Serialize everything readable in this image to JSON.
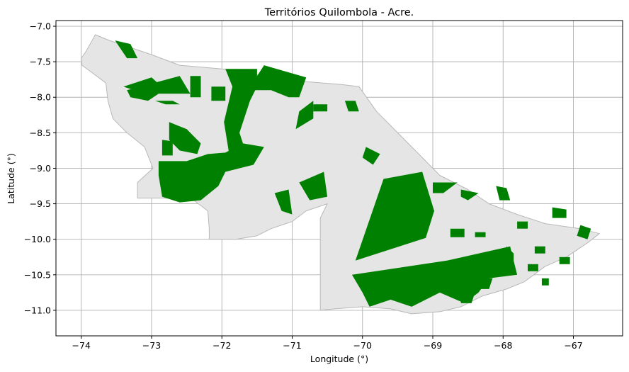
{
  "chart_data": {
    "type": "map",
    "title": "Territórios Quilombola - Acre.",
    "xlabel": "Longitude (°)",
    "ylabel": "Latitude (°)",
    "xlim": [
      -74.36,
      -66.3
    ],
    "ylim": [
      -11.36,
      -6.92
    ],
    "x_ticks": [
      -74,
      -73,
      -72,
      -71,
      -70,
      -69,
      -68,
      -67
    ],
    "x_tick_labels": [
      "−74",
      "−73",
      "−72",
      "−71",
      "−70",
      "−69",
      "−68",
      "−67"
    ],
    "y_ticks": [
      -7.0,
      -7.5,
      -8.0,
      -8.5,
      -9.0,
      -9.5,
      -10.0,
      -10.5,
      -11.0
    ],
    "y_tick_labels": [
      "−7.0",
      "−7.5",
      "−8.0",
      "−8.5",
      "−9.0",
      "−9.5",
      "−10.0",
      "−10.5",
      "−11.0"
    ],
    "grid": true,
    "colors": {
      "state_fill": "#e5e5e5",
      "state_edge": "#b8b8b8",
      "territory_fill": "#008000",
      "grid": "#b0b0b0",
      "axes": "#000000"
    },
    "state_outline": [
      [
        -73.8,
        -7.12
      ],
      [
        -73.6,
        -7.2
      ],
      [
        -73.3,
        -7.3
      ],
      [
        -73.0,
        -7.4
      ],
      [
        -72.6,
        -7.55
      ],
      [
        -72.0,
        -7.6
      ],
      [
        -71.4,
        -7.7
      ],
      [
        -70.8,
        -7.78
      ],
      [
        -70.3,
        -7.82
      ],
      [
        -70.05,
        -7.85
      ],
      [
        -69.8,
        -8.2
      ],
      [
        -69.5,
        -8.5
      ],
      [
        -69.2,
        -8.8
      ],
      [
        -68.9,
        -9.1
      ],
      [
        -68.5,
        -9.3
      ],
      [
        -68.2,
        -9.5
      ],
      [
        -67.8,
        -9.65
      ],
      [
        -67.4,
        -9.78
      ],
      [
        -66.9,
        -9.85
      ],
      [
        -66.63,
        -9.92
      ],
      [
        -66.8,
        -10.05
      ],
      [
        -67.1,
        -10.25
      ],
      [
        -67.4,
        -10.38
      ],
      [
        -67.7,
        -10.6
      ],
      [
        -67.95,
        -10.7
      ],
      [
        -68.3,
        -10.8
      ],
      [
        -68.6,
        -10.95
      ],
      [
        -68.9,
        -11.02
      ],
      [
        -69.3,
        -11.05
      ],
      [
        -69.6,
        -10.98
      ],
      [
        -70.0,
        -10.95
      ],
      [
        -70.4,
        -10.98
      ],
      [
        -70.6,
        -11.0
      ],
      [
        -70.6,
        -9.7
      ],
      [
        -70.5,
        -9.5
      ],
      [
        -70.8,
        -9.6
      ],
      [
        -71.0,
        -9.75
      ],
      [
        -71.3,
        -9.85
      ],
      [
        -71.5,
        -9.95
      ],
      [
        -71.8,
        -10.0
      ],
      [
        -72.18,
        -10.0
      ],
      [
        -72.18,
        -9.85
      ],
      [
        -72.2,
        -9.6
      ],
      [
        -72.4,
        -9.45
      ],
      [
        -72.8,
        -9.42
      ],
      [
        -73.2,
        -9.42
      ],
      [
        -73.2,
        -9.2
      ],
      [
        -72.98,
        -9.0
      ],
      [
        -73.1,
        -8.7
      ],
      [
        -73.35,
        -8.5
      ],
      [
        -73.55,
        -8.3
      ],
      [
        -73.62,
        -8.05
      ],
      [
        -73.65,
        -7.8
      ],
      [
        -73.85,
        -7.65
      ],
      [
        -73.99,
        -7.55
      ],
      [
        -74.0,
        -7.45
      ],
      [
        -73.93,
        -7.35
      ],
      [
        -73.8,
        -7.12
      ]
    ],
    "territories": [
      [
        [
          -73.52,
          -7.2
        ],
        [
          -73.3,
          -7.25
        ],
        [
          -73.2,
          -7.45
        ],
        [
          -73.35,
          -7.45
        ]
      ],
      [
        [
          -73.35,
          -7.9
        ],
        [
          -72.6,
          -7.7
        ],
        [
          -72.45,
          -7.95
        ],
        [
          -72.9,
          -7.95
        ],
        [
          -73.05,
          -8.05
        ],
        [
          -73.3,
          -8.0
        ]
      ],
      [
        [
          -73.4,
          -7.85
        ],
        [
          -73.0,
          -7.72
        ],
        [
          -72.8,
          -7.9
        ],
        [
          -73.1,
          -7.95
        ]
      ],
      [
        [
          -72.95,
          -8.05
        ],
        [
          -72.7,
          -8.05
        ],
        [
          -72.6,
          -8.1
        ],
        [
          -72.8,
          -8.1
        ]
      ],
      [
        [
          -72.75,
          -8.35
        ],
        [
          -72.5,
          -8.45
        ],
        [
          -72.3,
          -8.65
        ],
        [
          -72.35,
          -8.8
        ],
        [
          -72.6,
          -8.75
        ],
        [
          -72.75,
          -8.6
        ]
      ],
      [
        [
          -72.85,
          -8.6
        ],
        [
          -72.7,
          -8.62
        ],
        [
          -72.7,
          -8.82
        ],
        [
          -72.85,
          -8.82
        ]
      ],
      [
        [
          -72.9,
          -8.9
        ],
        [
          -72.5,
          -8.9
        ],
        [
          -72.2,
          -8.8
        ],
        [
          -71.95,
          -8.78
        ],
        [
          -71.7,
          -8.65
        ],
        [
          -71.4,
          -8.7
        ],
        [
          -71.55,
          -8.95
        ],
        [
          -71.95,
          -9.05
        ],
        [
          -72.05,
          -9.25
        ],
        [
          -72.3,
          -9.45
        ],
        [
          -72.6,
          -9.48
        ],
        [
          -72.85,
          -9.4
        ],
        [
          -72.9,
          -9.1
        ]
      ],
      [
        [
          -71.85,
          -7.85
        ],
        [
          -71.95,
          -7.6
        ],
        [
          -71.5,
          -7.6
        ],
        [
          -71.5,
          -7.85
        ],
        [
          -71.6,
          -8.05
        ],
        [
          -71.75,
          -8.5
        ],
        [
          -71.7,
          -8.65
        ],
        [
          -71.9,
          -8.78
        ],
        [
          -71.97,
          -8.35
        ]
      ],
      [
        [
          -71.4,
          -7.55
        ],
        [
          -70.8,
          -7.72
        ],
        [
          -70.9,
          -8.0
        ],
        [
          -71.05,
          -8.0
        ],
        [
          -71.3,
          -7.9
        ],
        [
          -71.6,
          -7.9
        ],
        [
          -71.5,
          -7.7
        ]
      ],
      [
        [
          -72.15,
          -7.85
        ],
        [
          -71.95,
          -7.85
        ],
        [
          -71.95,
          -8.05
        ],
        [
          -72.15,
          -8.05
        ]
      ],
      [
        [
          -72.45,
          -7.7
        ],
        [
          -72.3,
          -7.7
        ],
        [
          -72.3,
          -8.0
        ],
        [
          -72.45,
          -8.0
        ]
      ],
      [
        [
          -70.9,
          -8.2
        ],
        [
          -70.7,
          -8.05
        ],
        [
          -70.7,
          -8.3
        ],
        [
          -70.95,
          -8.45
        ]
      ],
      [
        [
          -70.7,
          -8.1
        ],
        [
          -70.5,
          -8.1
        ],
        [
          -70.5,
          -8.2
        ],
        [
          -70.7,
          -8.2
        ]
      ],
      [
        [
          -70.25,
          -8.05
        ],
        [
          -70.1,
          -8.05
        ],
        [
          -70.05,
          -8.2
        ],
        [
          -70.2,
          -8.2
        ]
      ],
      [
        [
          -69.95,
          -8.7
        ],
        [
          -69.75,
          -8.8
        ],
        [
          -69.85,
          -8.95
        ],
        [
          -70.0,
          -8.85
        ]
      ],
      [
        [
          -71.25,
          -9.35
        ],
        [
          -71.05,
          -9.3
        ],
        [
          -71.0,
          -9.65
        ],
        [
          -71.15,
          -9.6
        ]
      ],
      [
        [
          -70.9,
          -9.2
        ],
        [
          -70.55,
          -9.05
        ],
        [
          -70.5,
          -9.4
        ],
        [
          -70.75,
          -9.45
        ]
      ],
      [
        [
          -70.1,
          -10.3
        ],
        [
          -69.1,
          -9.98
        ],
        [
          -68.98,
          -9.6
        ],
        [
          -69.15,
          -9.05
        ],
        [
          -69.7,
          -9.15
        ]
      ],
      [
        [
          -69.0,
          -9.2
        ],
        [
          -68.65,
          -9.2
        ],
        [
          -68.85,
          -9.35
        ],
        [
          -69.0,
          -9.35
        ]
      ],
      [
        [
          -68.6,
          -9.3
        ],
        [
          -68.35,
          -9.35
        ],
        [
          -68.5,
          -9.45
        ],
        [
          -68.6,
          -9.4
        ]
      ],
      [
        [
          -68.1,
          -9.25
        ],
        [
          -67.95,
          -9.28
        ],
        [
          -67.9,
          -9.45
        ],
        [
          -68.05,
          -9.45
        ]
      ],
      [
        [
          -67.3,
          -9.55
        ],
        [
          -67.1,
          -9.58
        ],
        [
          -67.1,
          -9.7
        ],
        [
          -67.3,
          -9.7
        ]
      ],
      [
        [
          -66.9,
          -9.8
        ],
        [
          -66.75,
          -9.85
        ],
        [
          -66.8,
          -10.0
        ],
        [
          -66.95,
          -9.95
        ]
      ],
      [
        [
          -67.2,
          -10.25
        ],
        [
          -67.05,
          -10.25
        ],
        [
          -67.05,
          -10.35
        ],
        [
          -67.2,
          -10.35
        ]
      ],
      [
        [
          -70.15,
          -10.5
        ],
        [
          -68.8,
          -10.3
        ],
        [
          -67.9,
          -10.1
        ],
        [
          -67.8,
          -10.5
        ],
        [
          -68.2,
          -10.55
        ],
        [
          -68.35,
          -10.75
        ],
        [
          -68.55,
          -10.9
        ],
        [
          -68.9,
          -10.75
        ],
        [
          -69.3,
          -10.95
        ],
        [
          -69.6,
          -10.85
        ],
        [
          -69.9,
          -10.95
        ],
        [
          -70.0,
          -10.75
        ]
      ],
      [
        [
          -67.95,
          -10.1
        ],
        [
          -67.85,
          -10.2
        ],
        [
          -67.85,
          -10.3
        ],
        [
          -67.95,
          -10.25
        ]
      ],
      [
        [
          -68.75,
          -9.85
        ],
        [
          -68.55,
          -9.85
        ],
        [
          -68.55,
          -9.97
        ],
        [
          -68.75,
          -9.97
        ]
      ],
      [
        [
          -68.4,
          -9.9
        ],
        [
          -68.25,
          -9.9
        ],
        [
          -68.25,
          -9.97
        ],
        [
          -68.4,
          -9.97
        ]
      ],
      [
        [
          -68.35,
          -10.55
        ],
        [
          -68.15,
          -10.55
        ],
        [
          -68.2,
          -10.7
        ],
        [
          -68.35,
          -10.7
        ]
      ],
      [
        [
          -68.6,
          -10.75
        ],
        [
          -68.4,
          -10.75
        ],
        [
          -68.45,
          -10.9
        ],
        [
          -68.6,
          -10.9
        ]
      ],
      [
        [
          -67.8,
          -9.75
        ],
        [
          -67.65,
          -9.75
        ],
        [
          -67.65,
          -9.85
        ],
        [
          -67.8,
          -9.85
        ]
      ],
      [
        [
          -67.55,
          -10.1
        ],
        [
          -67.4,
          -10.1
        ],
        [
          -67.4,
          -10.2
        ],
        [
          -67.55,
          -10.2
        ]
      ],
      [
        [
          -67.45,
          -10.55
        ],
        [
          -67.35,
          -10.55
        ],
        [
          -67.35,
          -10.65
        ],
        [
          -67.45,
          -10.65
        ]
      ],
      [
        [
          -67.65,
          -10.35
        ],
        [
          -67.5,
          -10.35
        ],
        [
          -67.5,
          -10.45
        ],
        [
          -67.65,
          -10.45
        ]
      ]
    ]
  }
}
